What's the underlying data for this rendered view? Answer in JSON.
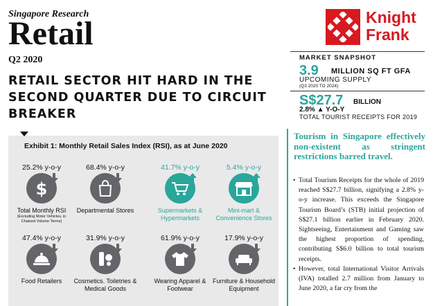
{
  "header": {
    "kicker": "Singapore Research",
    "title": "Retail",
    "period": "Q2 2020",
    "headline": "RETAIL SECTOR HIT HARD IN THE SECOND QUARTER DUE TO CIRCUIT BREAKER"
  },
  "logo": {
    "line1": "Knight",
    "line2": "Frank",
    "color": "#d71920"
  },
  "snapshot": {
    "title": "MARKET SNAPSHOT",
    "metric1": {
      "value": "3.9",
      "unit": "MILLION SQ FT GFA",
      "label": "UPCOMING SUPPLY",
      "sub": "(Q3 2020 TO 2024)"
    },
    "metric2": {
      "value": "S$27.7",
      "unit": "BILLION",
      "change": "2.8% ▲ Y-O-Y",
      "label": "TOTAL TOURIST RECEIPTS FOR 2019"
    }
  },
  "exhibit": {
    "title": "Exhibit 1: Monthly Retail Sales Index (RSI), as at June 2020",
    "items": [
      {
        "yoy": "25.2% y-o-y",
        "label": "Total Monthly RSI",
        "sublabel": "(Excluding Motor Vehicles, in Chained Volume Terms)",
        "icon": "dollar-icon",
        "direction": "down"
      },
      {
        "yoy": "68.4% y-o-y",
        "label": "Departmental Stores",
        "icon": "shopping-bag-icon",
        "direction": "down"
      },
      {
        "yoy": "41.7% y-o-y",
        "label": "Supermarkets & Hypermarkets",
        "icon": "shopping-cart-icon",
        "direction": "up"
      },
      {
        "yoy": "5.4% y-o-y",
        "label": "Mini-mart & Convenience Stores",
        "icon": "storefront-icon",
        "direction": "up"
      },
      {
        "yoy": "47.4% y-o-y",
        "label": "Food Retailers",
        "icon": "food-cloche-icon",
        "direction": "down"
      },
      {
        "yoy": "31.9% y-o-y",
        "label": "Cosmetics. Toiletries & Medical Goods",
        "icon": "cosmetics-icon",
        "direction": "down"
      },
      {
        "yoy": "61.9% y-o-y",
        "label": "Wearing Apparel & Footwear",
        "icon": "tshirt-icon",
        "direction": "down"
      },
      {
        "yoy": "17.9% y-o-y",
        "label": "Furniture & Household Equipment",
        "icon": "sofa-icon",
        "direction": "down"
      }
    ],
    "colors": {
      "down": "#646569",
      "up": "#2aa69b"
    }
  },
  "side": {
    "lead": "Tourism in Singapore effectively non-existent as stringent restrictions barred travel.",
    "bullets": [
      "Total Tourism Receipts for the whole of 2019 reached S$27.7 billion, signifying a 2.8% y-o-y increase. This exceeds the Singapore Tourism Board’s (STB) initial projection of S$27.1 billion earlier in February 2020. Sightseeing, Entertainment and Gaming saw the highest proportion of spending, contributing S$6.0 billion to total tourism receipts.",
      "However, total International Visitor Arrivals (IVA) totalled 2.7 million from January to June 2020, a far cry from the"
    ]
  }
}
